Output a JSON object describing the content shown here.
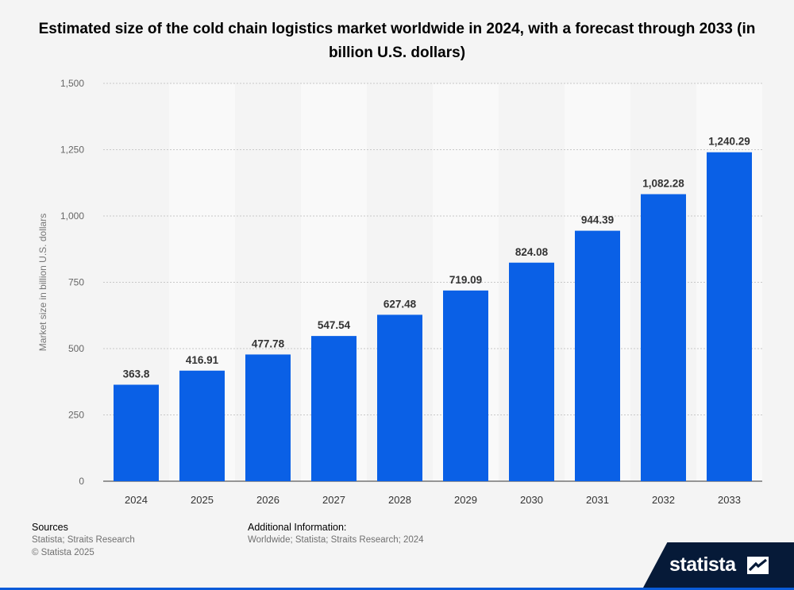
{
  "chart_data": {
    "type": "bar",
    "title": "Estimated size of the cold chain logistics market worldwide in 2024, with a forecast through 2033 (in billion U.S. dollars)",
    "ylabel": "Market size in billion U.S. dollars",
    "xlabel": "",
    "categories": [
      "2024",
      "2025",
      "2026",
      "2027",
      "2028",
      "2029",
      "2030",
      "2031",
      "2032",
      "2033"
    ],
    "values": [
      363.8,
      416.91,
      477.78,
      547.54,
      627.48,
      719.09,
      824.08,
      944.39,
      1082.28,
      1240.29
    ],
    "data_labels": [
      "363.8",
      "416.91",
      "477.78",
      "547.54",
      "627.48",
      "719.09",
      "824.08",
      "944.39",
      "1,082.28",
      "1,240.29"
    ],
    "yticks": [
      0,
      250,
      500,
      750,
      1000,
      1250,
      1500
    ],
    "ytick_labels": [
      "0",
      "250",
      "500",
      "750",
      "1,000",
      "1,250",
      "1,500"
    ],
    "ylim": [
      0,
      1500
    ],
    "grid": true,
    "bar_color": "#0a60e6"
  },
  "footer": {
    "sources_heading": "Sources",
    "sources_lines": [
      "Statista; Straits Research",
      "© Statista 2025"
    ],
    "additional_heading": "Additional Information:",
    "additional_lines": [
      "Worldwide; Statista; Straits Research; 2024"
    ]
  },
  "brand": {
    "name": "statista",
    "logo_icon": "statista-logo-icon",
    "band_color": "#061a38",
    "accent_color": "#0a5bd8"
  }
}
